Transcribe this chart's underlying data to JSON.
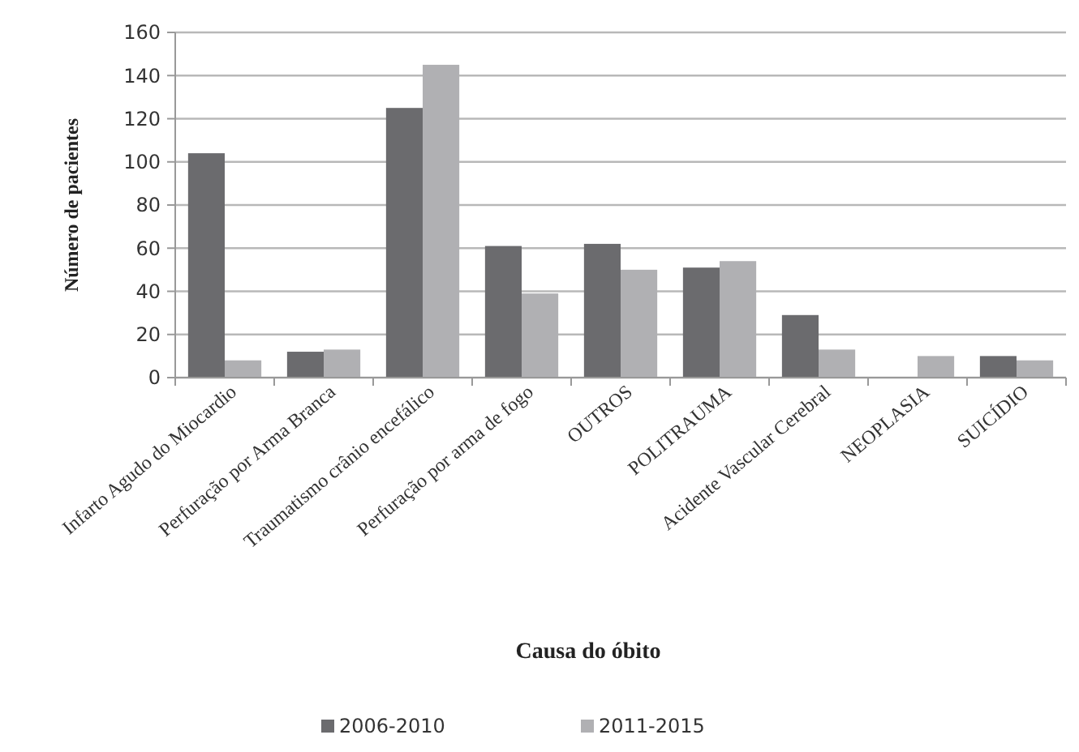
{
  "chart_data": {
    "type": "bar",
    "xlabel": "Causa do óbito",
    "ylabel": "Número de pacientes",
    "categories": [
      "Infarto Agudo do Miocardio",
      "Perfuração por Arma Branca",
      "Traumatismo crânio encefálico",
      "Perfuração por arma de fogo",
      "OUTROS",
      "POLITRAUMA",
      "Acidente Vascular Cerebral",
      "NEOPLASIA",
      "SUICÍDIO"
    ],
    "series": [
      {
        "name": "2006-2010",
        "color": "#6b6b6e",
        "values": [
          104,
          12,
          125,
          61,
          62,
          51,
          29,
          0,
          10
        ]
      },
      {
        "name": "2011-2015",
        "color": "#b0b0b3",
        "values": [
          8,
          13,
          145,
          39,
          50,
          54,
          13,
          10,
          8
        ]
      }
    ],
    "ylim": [
      0,
      160
    ],
    "yticks": [
      0,
      20,
      40,
      60,
      80,
      100,
      120,
      140,
      160
    ],
    "grid": "y",
    "legend": "bottom"
  }
}
